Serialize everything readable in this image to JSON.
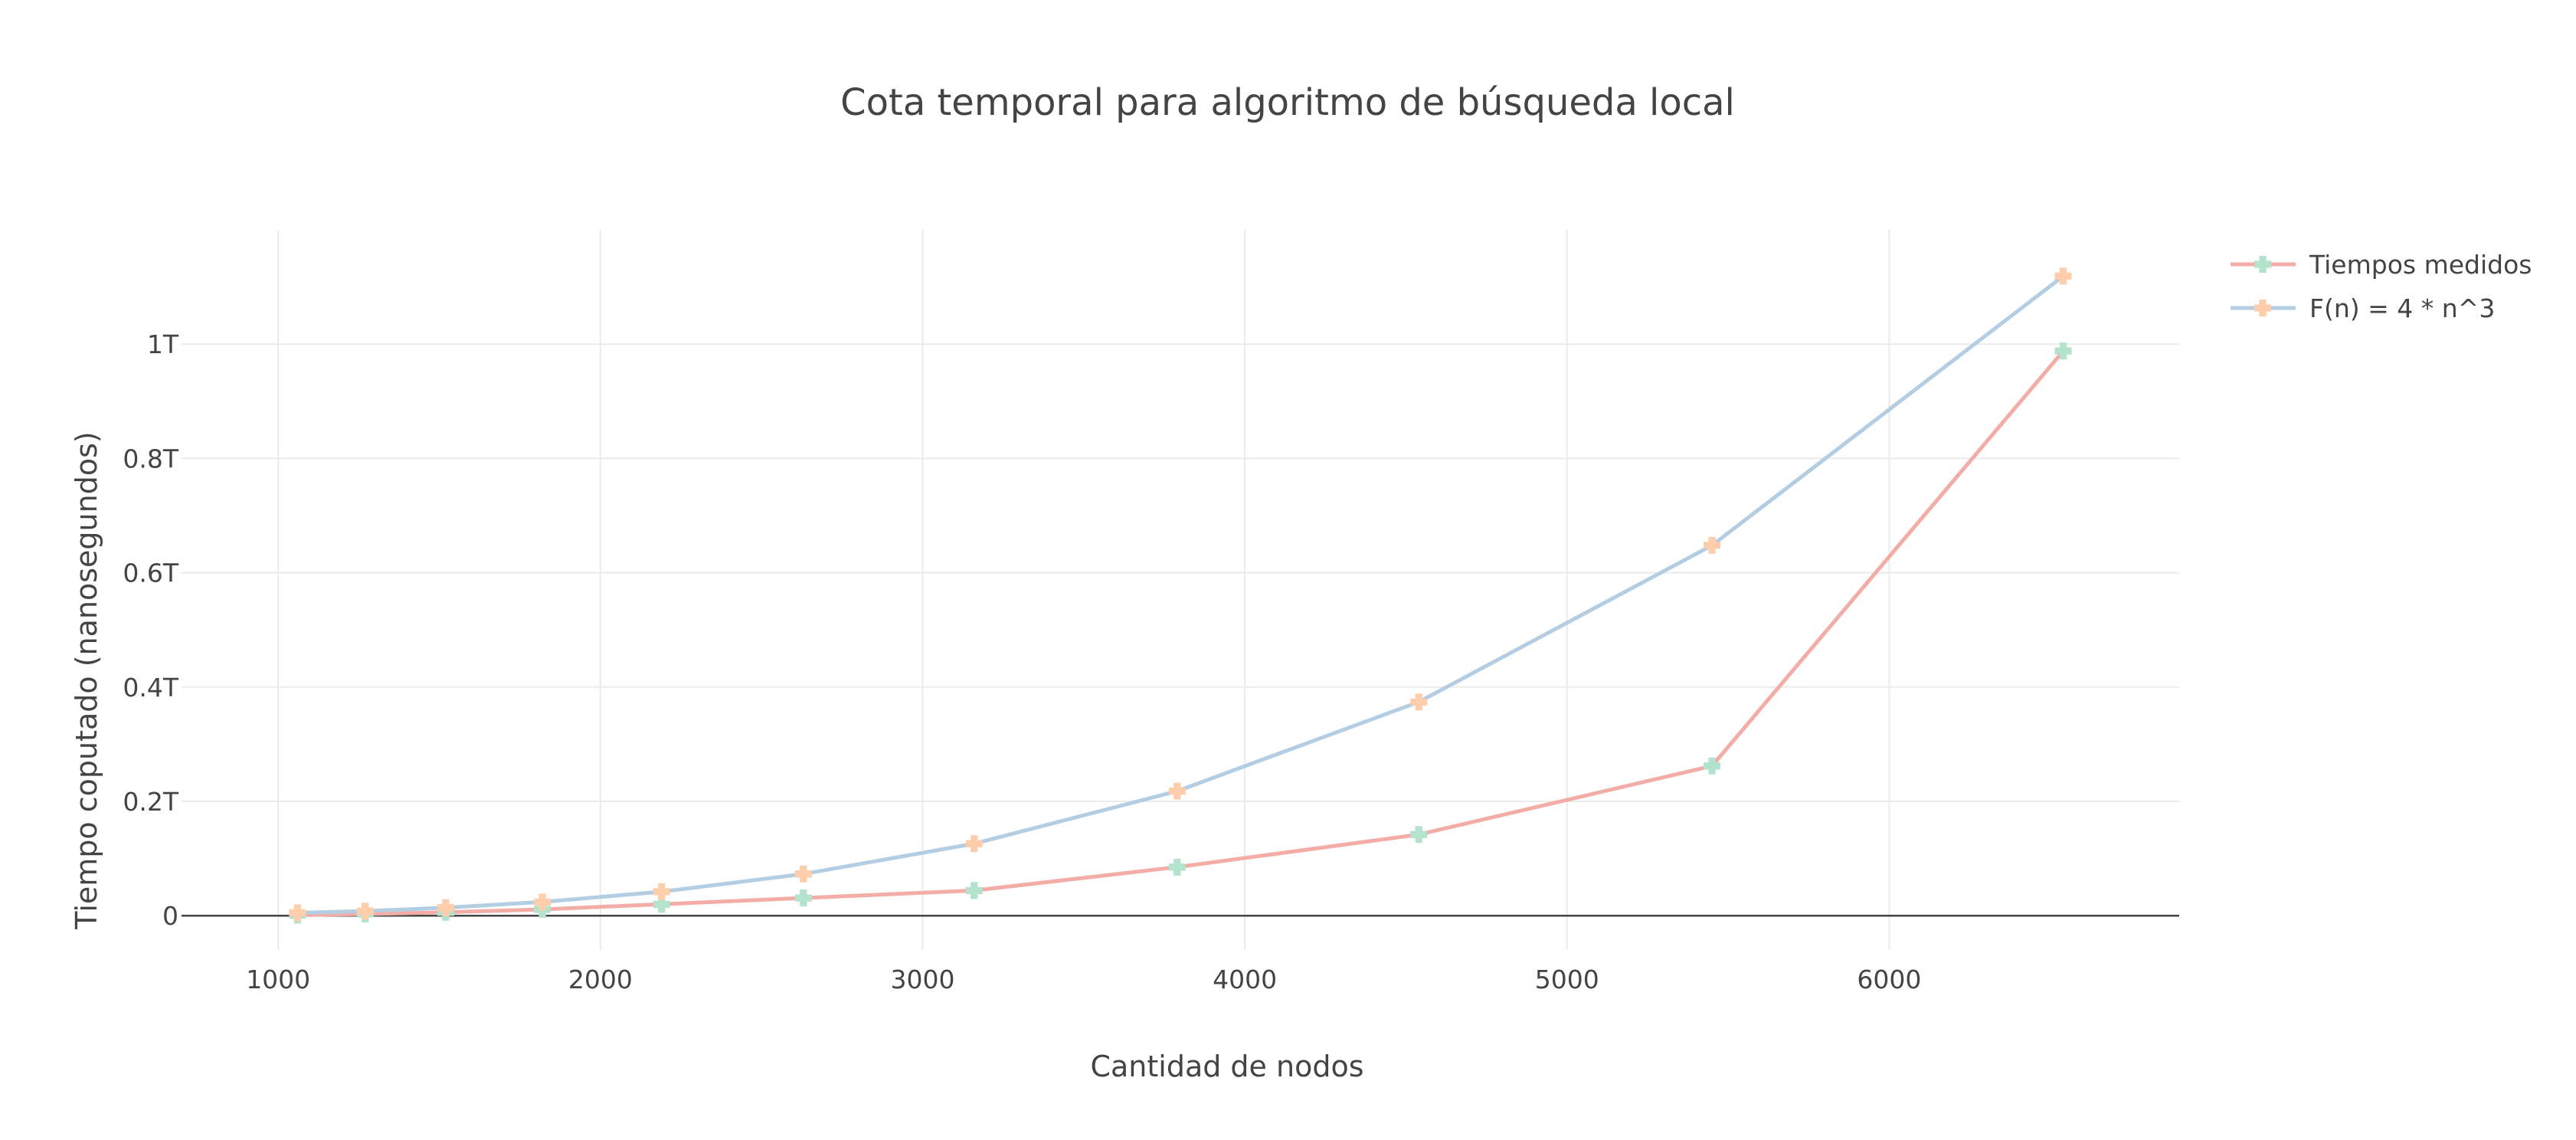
{
  "chart_data": {
    "type": "line",
    "title": "Cota temporal para algoritmo de búsqueda local",
    "xlabel": "Cantidad de nodos",
    "ylabel": "Tiempo coputado (nanosegundos)",
    "xlim": [
      700,
      6900
    ],
    "ylim": [
      -0.06,
      1.2
    ],
    "x_ticks": [
      1000,
      2000,
      3000,
      4000,
      5000,
      6000
    ],
    "x_tick_labels": [
      "1000",
      "2000",
      "3000",
      "4000",
      "5000",
      "6000"
    ],
    "y_ticks": [
      0,
      0.2,
      0.4,
      0.6,
      0.8,
      1.0
    ],
    "y_tick_labels": [
      "0",
      "0.2T",
      "0.4T",
      "0.6T",
      "0.8T",
      "1T"
    ],
    "y_unit": "T (10^12 ns)",
    "grid": true,
    "legend_position": "top-right",
    "series": [
      {
        "name": "Tiempos medidos",
        "line_color": "#f4ada6",
        "marker_color": "#b3e2cd",
        "x": [
          1060,
          1270,
          1520,
          1820,
          2190,
          2630,
          3160,
          3790,
          4540,
          5450,
          6540
        ],
        "y": [
          0.001,
          0.003,
          0.006,
          0.011,
          0.02,
          0.031,
          0.044,
          0.085,
          0.142,
          0.262,
          0.988
        ]
      },
      {
        "name": "F(n) = 4 * n^3",
        "line_color": "#b3cde3",
        "marker_color": "#fdcdac",
        "x": [
          1060,
          1270,
          1520,
          1820,
          2190,
          2630,
          3160,
          3790,
          4540,
          5450,
          6540
        ],
        "y": [
          0.005,
          0.008,
          0.014,
          0.024,
          0.042,
          0.073,
          0.126,
          0.218,
          0.374,
          0.648,
          1.119
        ]
      }
    ]
  }
}
